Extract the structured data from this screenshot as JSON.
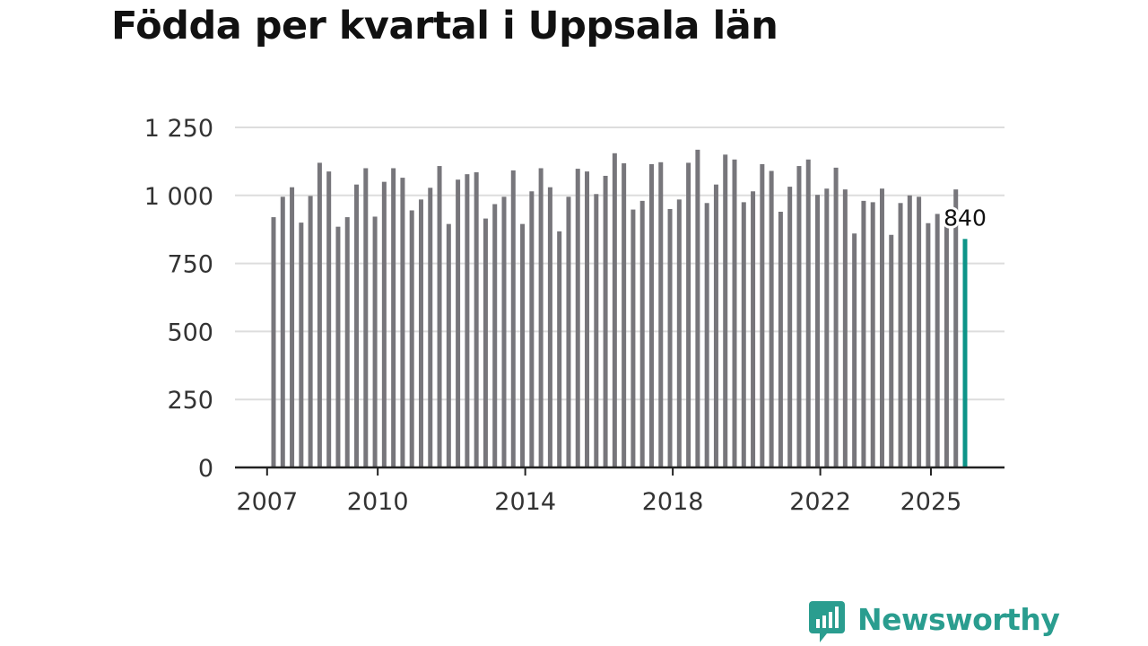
{
  "title": "Födda per kvartal i Uppsala län",
  "colors": {
    "bar": "#77767b",
    "highlight": "#0d9488",
    "grid": "#dddddd",
    "axis": "#222222",
    "brand": "#2a9d8f"
  },
  "brand": {
    "name": "Newsworthy",
    "icon": "newsworthy-logo-icon"
  },
  "chart_data": {
    "type": "bar",
    "title": "Födda per kvartal i Uppsala län",
    "xlabel": "",
    "ylabel": "",
    "ylim": [
      0,
      1250
    ],
    "yticks": [
      0,
      250,
      500,
      750,
      1000,
      1250
    ],
    "ytick_labels": [
      "0",
      "250",
      "500",
      "750",
      "1 000",
      "1 250"
    ],
    "xticks": [
      {
        "year": 2007,
        "label": "2007"
      },
      {
        "year": 2010,
        "label": "2010"
      },
      {
        "year": 2014,
        "label": "2014"
      },
      {
        "year": 2018,
        "label": "2018"
      },
      {
        "year": 2022,
        "label": "2022"
      },
      {
        "year": 2025,
        "label": "2025"
      }
    ],
    "grid": true,
    "start": {
      "year": 2007,
      "quarter": 1
    },
    "values": [
      920,
      995,
      1030,
      900,
      998,
      1120,
      1088,
      885,
      920,
      1040,
      1100,
      922,
      1050,
      1100,
      1065,
      945,
      985,
      1028,
      1108,
      895,
      1058,
      1078,
      1085,
      915,
      968,
      995,
      1092,
      895,
      1015,
      1100,
      1030,
      868,
      995,
      1098,
      1088,
      1005,
      1072,
      1155,
      1118,
      948,
      980,
      1115,
      1122,
      950,
      985,
      1120,
      1168,
      972,
      1040,
      1150,
      1132,
      975,
      1015,
      1115,
      1090,
      940,
      1032,
      1108,
      1132,
      1002,
      1025,
      1102,
      1022,
      860,
      980,
      975,
      1025,
      855,
      972,
      1000,
      995,
      898,
      932,
      905,
      1022,
      840
    ],
    "highlight_last": true,
    "annotation": {
      "label": "840",
      "value": 840
    }
  }
}
